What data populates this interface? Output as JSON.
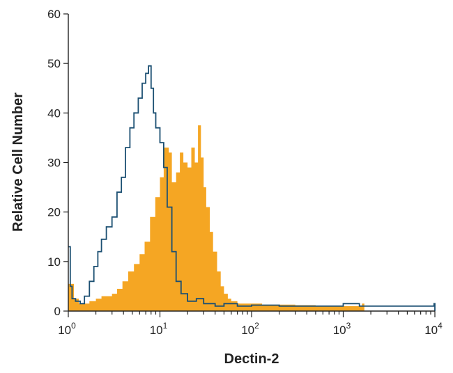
{
  "chart_data": {
    "type": "area",
    "xlabel": "Dectin-2",
    "ylabel": "Relative Cell Number",
    "xscale": "log",
    "xlim": [
      1,
      10000
    ],
    "ylim": [
      0,
      60
    ],
    "x_ticks": [
      {
        "base": "10",
        "exp": "0",
        "value": 1
      },
      {
        "base": "10",
        "exp": "1",
        "value": 10
      },
      {
        "base": "10",
        "exp": "2",
        "value": 100
      },
      {
        "base": "10",
        "exp": "3",
        "value": 1000
      },
      {
        "base": "10",
        "exp": "4",
        "value": 10000
      }
    ],
    "y_ticks": [
      "0",
      "10",
      "20",
      "30",
      "40",
      "50",
      "60"
    ],
    "grid": false,
    "series": [
      {
        "style": "filled-histogram",
        "color": "#F5A623",
        "x": [
          1.0,
          1.15,
          1.3,
          1.5,
          1.7,
          2.0,
          2.3,
          2.6,
          3.0,
          3.4,
          3.9,
          4.5,
          5.2,
          6.0,
          6.8,
          7.8,
          8.9,
          10.0,
          11.0,
          12.5,
          13.5,
          15.0,
          16.5,
          18.0,
          20.0,
          22.0,
          24.0,
          26.0,
          28.0,
          30.0,
          32.0,
          35.0,
          38.0,
          42.0,
          46.0,
          50.0,
          55.0,
          60.0,
          70.0,
          85.0,
          100.0,
          130.0,
          200.0,
          300.0,
          500.0,
          800.0,
          1200.0,
          1600.0,
          1700.0
        ],
        "y": [
          5.5,
          2.5,
          1.5,
          1.5,
          2.0,
          2.5,
          3.0,
          3.0,
          3.5,
          4.5,
          6.0,
          8.0,
          9.5,
          11.5,
          14.0,
          19.0,
          23.0,
          27.0,
          33.0,
          32.0,
          26.0,
          28.0,
          32.0,
          30.0,
          29.0,
          33.0,
          30.0,
          37.5,
          31.0,
          25.0,
          21.0,
          16.0,
          12.0,
          8.0,
          5.0,
          3.5,
          2.5,
          2.0,
          1.5,
          1.5,
          1.5,
          1.2,
          1.3,
          1.2,
          1.0,
          1.0,
          1.0,
          1.5,
          0
        ]
      },
      {
        "style": "outline-histogram",
        "color": "#1B4F72",
        "x": [
          1.0,
          1.05,
          1.1,
          1.2,
          1.35,
          1.5,
          1.7,
          1.9,
          2.1,
          2.3,
          2.6,
          3.0,
          3.4,
          3.8,
          4.2,
          4.7,
          5.2,
          5.8,
          6.4,
          7.0,
          7.5,
          8.0,
          8.5,
          9.0,
          10.0,
          11.0,
          12.0,
          13.5,
          15.0,
          17.0,
          20.0,
          25.0,
          30.0,
          35.0,
          40.0,
          50.0,
          70.0,
          100.0,
          200.0,
          400.0,
          800.0,
          1000.0,
          1500.0,
          2000.0,
          5000.0,
          9800.0,
          10000.0
        ],
        "y": [
          13.0,
          5.0,
          2.5,
          2.0,
          1.5,
          3.0,
          6.0,
          9.0,
          12.0,
          14.5,
          17.0,
          19.0,
          24.0,
          27.0,
          33.0,
          37.0,
          40.0,
          43.0,
          46.0,
          48.0,
          49.5,
          45.0,
          40.0,
          37.0,
          34.0,
          29.0,
          21.0,
          12.0,
          6.0,
          3.5,
          2.0,
          2.5,
          1.5,
          1.5,
          1.0,
          1.5,
          1.0,
          1.2,
          1.0,
          1.0,
          1.0,
          1.5,
          1.0,
          1.0,
          1.0,
          1.5,
          0
        ]
      }
    ]
  }
}
